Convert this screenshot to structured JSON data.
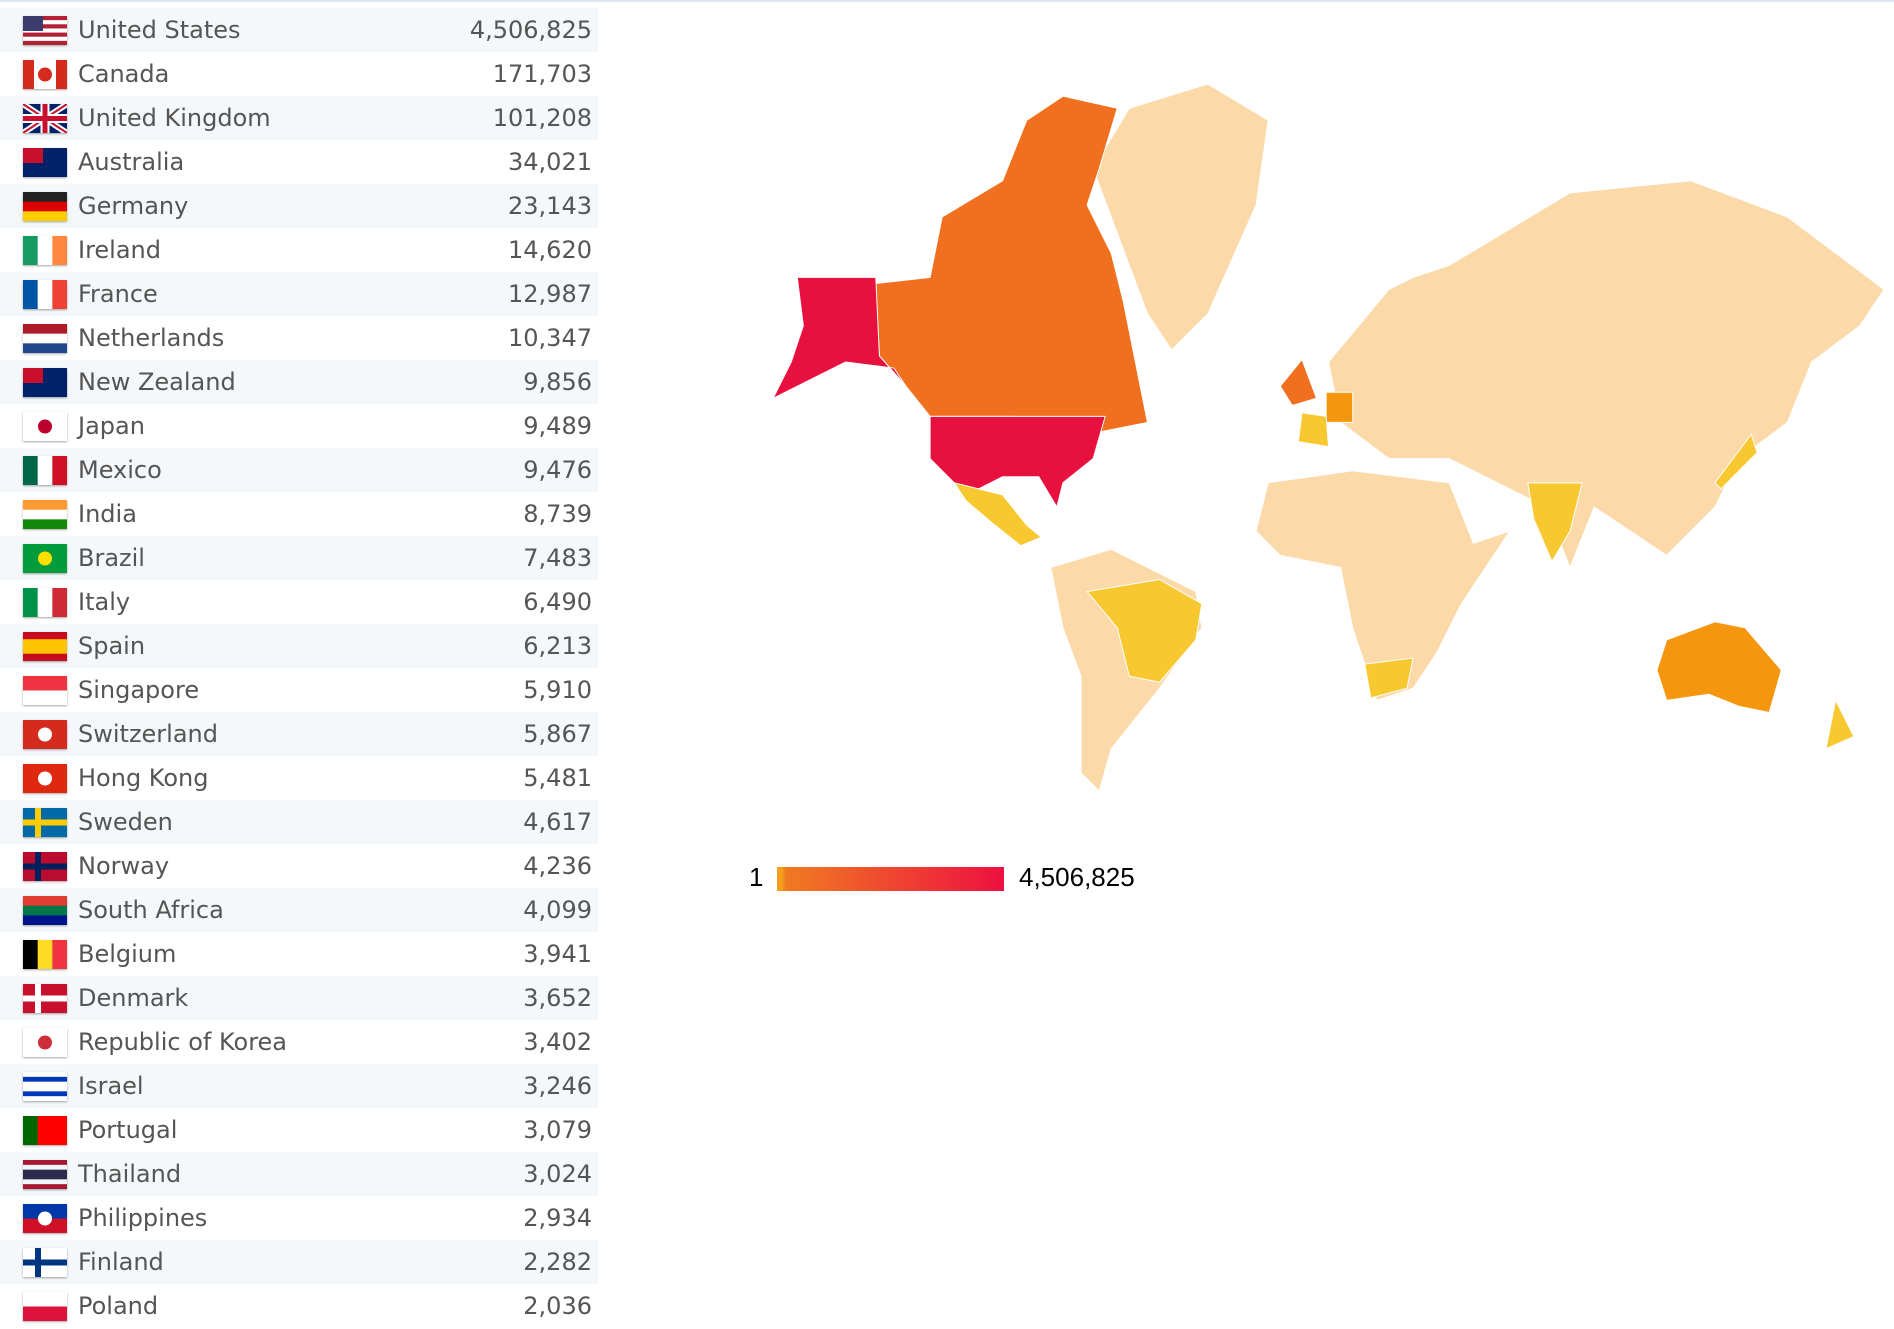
{
  "chart_data": {
    "type": "choropleth-map",
    "metric_range": {
      "min": 1,
      "max": 4506825
    },
    "legend": {
      "min_label": "1",
      "max_label": "4,506,825",
      "colors": [
        "#f7a01c",
        "#ee1040"
      ]
    },
    "colors": {
      "no_data": "#f3f3f3",
      "low": "#fcd9a8",
      "yellow": "#f8c830",
      "orange": "#f5960f",
      "dark_orange": "#f07020",
      "red": "#e8103f"
    },
    "rows": [
      {
        "country": "United States",
        "value": "4,506,825",
        "flag": {
          "dir": "h",
          "colors": [
            "#b22234",
            "#ffffff",
            "#b22234",
            "#ffffff",
            "#b22234",
            "#ffffff",
            "#b22234"
          ],
          "canton": "#3c3b6e"
        }
      },
      {
        "country": "Canada",
        "value": "171,703",
        "flag": {
          "dir": "v",
          "colors": [
            "#d52b1e",
            "#ffffff",
            "#ffffff",
            "#d52b1e"
          ],
          "emblem": "#d52b1e"
        }
      },
      {
        "country": "United Kingdom",
        "value": "101,208",
        "flag": {
          "dir": "uk",
          "colors": [
            "#012169",
            "#ffffff",
            "#c8102e"
          ]
        }
      },
      {
        "country": "Australia",
        "value": "34,021",
        "flag": {
          "dir": "h",
          "colors": [
            "#012169"
          ],
          "canton": "#c8102e"
        }
      },
      {
        "country": "Germany",
        "value": "23,143",
        "flag": {
          "dir": "h",
          "colors": [
            "#222222",
            "#dd0000",
            "#ffce00"
          ]
        }
      },
      {
        "country": "Ireland",
        "value": "14,620",
        "flag": {
          "dir": "v",
          "colors": [
            "#169b62",
            "#ffffff",
            "#ff883e"
          ]
        }
      },
      {
        "country": "France",
        "value": "12,987",
        "flag": {
          "dir": "v",
          "colors": [
            "#0055a4",
            "#ffffff",
            "#ef4135"
          ]
        }
      },
      {
        "country": "Netherlands",
        "value": "10,347",
        "flag": {
          "dir": "h",
          "colors": [
            "#ae1c28",
            "#ffffff",
            "#21468b"
          ]
        }
      },
      {
        "country": "New Zealand",
        "value": "9,856",
        "flag": {
          "dir": "h",
          "colors": [
            "#012169"
          ],
          "canton": "#c8102e"
        }
      },
      {
        "country": "Japan",
        "value": "9,489",
        "flag": {
          "dir": "h",
          "colors": [
            "#ffffff"
          ],
          "emblem": "#bc002d"
        }
      },
      {
        "country": "Mexico",
        "value": "9,476",
        "flag": {
          "dir": "v",
          "colors": [
            "#006847",
            "#ffffff",
            "#ce1126"
          ]
        }
      },
      {
        "country": "India",
        "value": "8,739",
        "flag": {
          "dir": "h",
          "colors": [
            "#ff9933",
            "#ffffff",
            "#138808"
          ]
        }
      },
      {
        "country": "Brazil",
        "value": "7,483",
        "flag": {
          "dir": "h",
          "colors": [
            "#009c3b"
          ],
          "emblem": "#ffdf00"
        }
      },
      {
        "country": "Italy",
        "value": "6,490",
        "flag": {
          "dir": "v",
          "colors": [
            "#009246",
            "#ffffff",
            "#ce2b37"
          ]
        }
      },
      {
        "country": "Spain",
        "value": "6,213",
        "flag": {
          "dir": "h",
          "colors": [
            "#c60b1e",
            "#ffc400",
            "#ffc400",
            "#c60b1e"
          ]
        }
      },
      {
        "country": "Singapore",
        "value": "5,910",
        "flag": {
          "dir": "h",
          "colors": [
            "#ef3340",
            "#ffffff"
          ]
        }
      },
      {
        "country": "Switzerland",
        "value": "5,867",
        "flag": {
          "dir": "h",
          "colors": [
            "#d52b1e"
          ],
          "emblem": "#ffffff"
        }
      },
      {
        "country": "Hong Kong",
        "value": "5,481",
        "flag": {
          "dir": "h",
          "colors": [
            "#de2910"
          ],
          "emblem": "#ffffff"
        }
      },
      {
        "country": "Sweden",
        "value": "4,617",
        "flag": {
          "dir": "nordic",
          "colors": [
            "#006aa7",
            "#fecc00"
          ]
        }
      },
      {
        "country": "Norway",
        "value": "4,236",
        "flag": {
          "dir": "nordic",
          "colors": [
            "#ba0c2f",
            "#00205b"
          ]
        }
      },
      {
        "country": "South Africa",
        "value": "4,099",
        "flag": {
          "dir": "h",
          "colors": [
            "#e03c31",
            "#007749",
            "#001489"
          ]
        }
      },
      {
        "country": "Belgium",
        "value": "3,941",
        "flag": {
          "dir": "v",
          "colors": [
            "#000000",
            "#fdda24",
            "#ef3340"
          ]
        }
      },
      {
        "country": "Denmark",
        "value": "3,652",
        "flag": {
          "dir": "nordic",
          "colors": [
            "#c8102e",
            "#ffffff"
          ]
        }
      },
      {
        "country": "Republic of Korea",
        "value": "3,402",
        "flag": {
          "dir": "h",
          "colors": [
            "#ffffff"
          ],
          "emblem": "#cd2e3a"
        }
      },
      {
        "country": "Israel",
        "value": "3,246",
        "flag": {
          "dir": "h",
          "colors": [
            "#ffffff",
            "#0038b8",
            "#ffffff",
            "#ffffff",
            "#0038b8",
            "#ffffff"
          ]
        }
      },
      {
        "country": "Portugal",
        "value": "3,079",
        "flag": {
          "dir": "v",
          "colors": [
            "#006600",
            "#ff0000",
            "#ff0000"
          ]
        }
      },
      {
        "country": "Thailand",
        "value": "3,024",
        "flag": {
          "dir": "h",
          "colors": [
            "#a51931",
            "#f4f5f8",
            "#2d2a4a",
            "#2d2a4a",
            "#f4f5f8",
            "#a51931"
          ]
        }
      },
      {
        "country": "Philippines",
        "value": "2,934",
        "flag": {
          "dir": "h",
          "colors": [
            "#0038a8",
            "#ce1126"
          ],
          "emblem": "#ffffff"
        }
      },
      {
        "country": "Finland",
        "value": "2,282",
        "flag": {
          "dir": "nordic",
          "colors": [
            "#ffffff",
            "#003580"
          ]
        }
      },
      {
        "country": "Poland",
        "value": "2,036",
        "flag": {
          "dir": "h",
          "colors": [
            "#ffffff",
            "#dc143c"
          ]
        }
      }
    ]
  }
}
